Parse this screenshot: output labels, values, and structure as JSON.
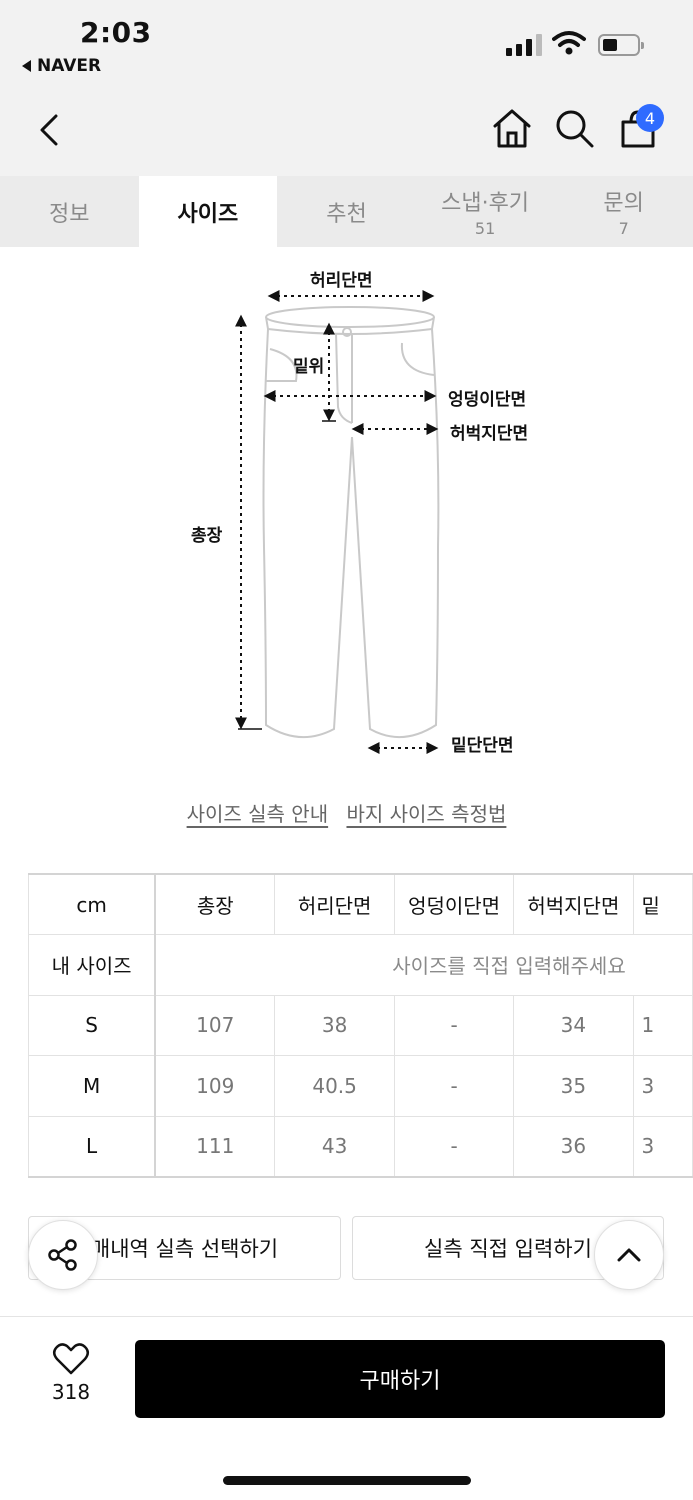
{
  "status": {
    "time": "2:03",
    "back_app": "NAVER"
  },
  "header": {
    "cart_count": "4"
  },
  "tabs": [
    {
      "label": "정보",
      "count": ""
    },
    {
      "label": "사이즈",
      "count": ""
    },
    {
      "label": "추천",
      "count": ""
    },
    {
      "label": "스냅·후기",
      "count": "51"
    },
    {
      "label": "문의",
      "count": "7"
    }
  ],
  "diagram": {
    "waist": "허리단면",
    "rise": "밑위",
    "hip": "엉덩이단면",
    "thigh": "허벅지단면",
    "length": "총장",
    "hem": "밑단단면"
  },
  "links": {
    "guide": "사이즈 실측 안내",
    "howto": "바지 사이즈 측정법"
  },
  "size_table": {
    "headers": [
      "cm",
      "총장",
      "허리단면",
      "엉덩이단면",
      "허벅지단면",
      "밑"
    ],
    "my_size_label": "내 사이즈",
    "my_size_placeholder": "사이즈를 직접 입력해주세요",
    "rows": [
      {
        "size": "S",
        "length": "107",
        "waist": "38",
        "hip": "-",
        "thigh": "34",
        "hem": "1"
      },
      {
        "size": "M",
        "length": "109",
        "waist": "40.5",
        "hip": "-",
        "thigh": "35",
        "hem": "3"
      },
      {
        "size": "L",
        "length": "111",
        "waist": "43",
        "hip": "-",
        "thigh": "36",
        "hem": "3"
      }
    ]
  },
  "actions": {
    "select_history": "매내역 실측 선택하기",
    "direct_input": "실측 직접 입력하기"
  },
  "bottom": {
    "like_count": "318",
    "buy_label": "구매하기"
  },
  "colors": {
    "badge": "#2f6bff",
    "buy_button": "#000000"
  }
}
